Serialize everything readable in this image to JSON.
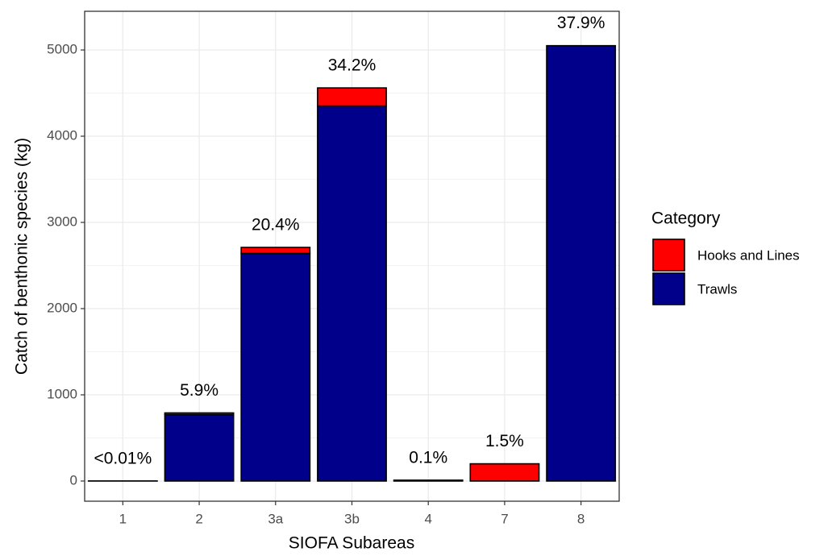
{
  "chart_data": {
    "type": "stacked_bar",
    "x_label": "SIOFA Subareas",
    "y_label": "Catch of benthonic species (kg)",
    "categories": [
      "1",
      "2",
      "3a",
      "3b",
      "4",
      "7",
      "8"
    ],
    "series": [
      {
        "name": "Hooks and Lines",
        "color": "#ff0000",
        "values": [
          0,
          20,
          70,
          210,
          0,
          200,
          0
        ]
      },
      {
        "name": "Trawls",
        "color": "#00008b",
        "values": [
          1,
          770,
          2640,
          4350,
          10,
          0,
          5050
        ]
      }
    ],
    "bar_labels": [
      "<0.01%",
      "5.9%",
      "20.4%",
      "34.2%",
      "0.1%",
      "1.5%",
      "37.9%"
    ],
    "legend_title": "Category",
    "legend_position": "right",
    "ylim": [
      -234,
      5449
    ],
    "yticks": [
      0,
      1000,
      2000,
      3000,
      4000,
      5000
    ],
    "grid": true
  }
}
